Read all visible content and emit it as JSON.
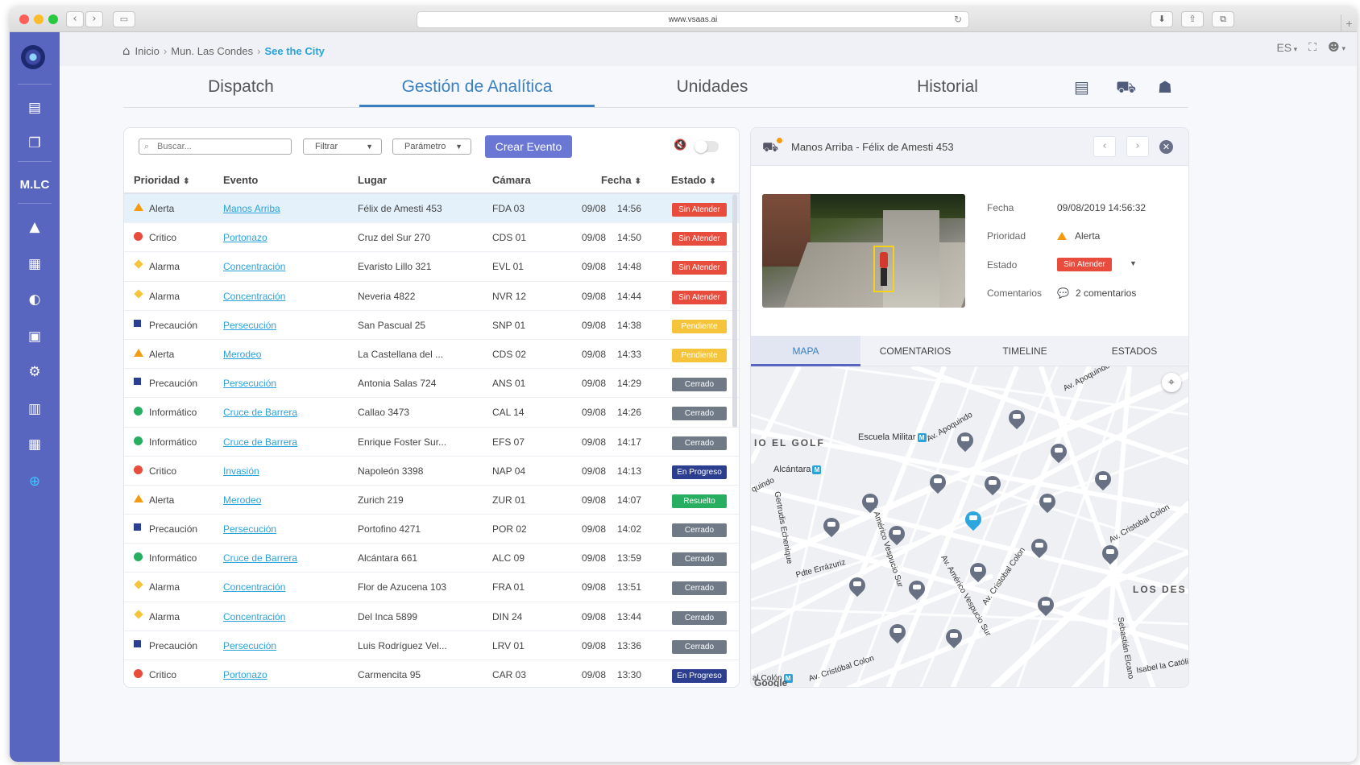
{
  "browser": {
    "url": "www.vsaas.ai"
  },
  "sidebar": {
    "org_label": "M.LC"
  },
  "breadcrumb": {
    "home": "Inicio",
    "level1": "Mun. Las Condes",
    "current": "See the City"
  },
  "topbar": {
    "language": "ES"
  },
  "tabs": [
    {
      "label": "Dispatch"
    },
    {
      "label": "Gestión de Analítica"
    },
    {
      "label": "Unidades"
    },
    {
      "label": "Historial"
    }
  ],
  "toolbar": {
    "search_placeholder": "Buscar...",
    "filter_label": "Filtrar",
    "param_label": "Parámetro",
    "create_label": "Crear Evento"
  },
  "table": {
    "headers": {
      "prioridad": "Prioridad",
      "evento": "Evento",
      "lugar": "Lugar",
      "camara": "Cámara",
      "fecha": "Fecha",
      "estado": "Estado"
    },
    "rows": [
      {
        "prioridad": "Alerta",
        "icon": "triangle",
        "color": "#f39c12",
        "evento": "Manos Arriba",
        "lugar": "Félix de Amesti 453",
        "camara": "FDA 03",
        "fecha": "09/08",
        "hora": "14:56",
        "estado": "Sin Atender",
        "estado_color": "#e74c3c"
      },
      {
        "prioridad": "Critico",
        "icon": "dot",
        "color": "#e74c3c",
        "evento": "Portonazo",
        "lugar": "Cruz del Sur 270",
        "camara": "CDS 01",
        "fecha": "09/08",
        "hora": "14:50",
        "estado": "Sin Atender",
        "estado_color": "#e74c3c"
      },
      {
        "prioridad": "Alarma",
        "icon": "diamond",
        "color": "#f6c43a",
        "evento": "Concentración",
        "lugar": "Evaristo Lillo 321",
        "camara": "EVL 01",
        "fecha": "09/08",
        "hora": "14:48",
        "estado": "Sin Atender",
        "estado_color": "#e74c3c"
      },
      {
        "prioridad": "Alarma",
        "icon": "diamond",
        "color": "#f6c43a",
        "evento": "Concentración",
        "lugar": "Neveria 4822",
        "camara": "NVR 12",
        "fecha": "09/08",
        "hora": "14:44",
        "estado": "Sin Atender",
        "estado_color": "#e74c3c"
      },
      {
        "prioridad": "Precaución",
        "icon": "square",
        "color": "#2c3e8f",
        "evento": "Persecución",
        "lugar": "San Pascual 25",
        "camara": "SNP 01",
        "fecha": "09/08",
        "hora": "14:38",
        "estado": "Pendiente",
        "estado_color": "#f6c43a"
      },
      {
        "prioridad": "Alerta",
        "icon": "triangle",
        "color": "#f39c12",
        "evento": "Merodeo",
        "lugar": "La Castellana del ...",
        "camara": "CDS 02",
        "fecha": "09/08",
        "hora": "14:33",
        "estado": "Pendiente",
        "estado_color": "#f6c43a"
      },
      {
        "prioridad": "Precaución",
        "icon": "square",
        "color": "#2c3e8f",
        "evento": "Persecución",
        "lugar": "Antonia Salas 724",
        "camara": "ANS 01",
        "fecha": "09/08",
        "hora": "14:29",
        "estado": "Cerrado",
        "estado_color": "#6f7a86"
      },
      {
        "prioridad": "Informático",
        "icon": "dot",
        "color": "#27ae60",
        "evento": "Cruce de Barrera",
        "lugar": "Callao 3473",
        "camara": "CAL 14",
        "fecha": "09/08",
        "hora": "14:26",
        "estado": "Cerrado",
        "estado_color": "#6f7a86"
      },
      {
        "prioridad": "Informático",
        "icon": "dot",
        "color": "#27ae60",
        "evento": "Cruce de Barrera",
        "lugar": "Enrique Foster Sur...",
        "camara": "EFS 07",
        "fecha": "09/08",
        "hora": "14:17",
        "estado": "Cerrado",
        "estado_color": "#6f7a86"
      },
      {
        "prioridad": "Critico",
        "icon": "dot",
        "color": "#e74c3c",
        "evento": "Invasión",
        "lugar": "Napoleón 3398",
        "camara": "NAP 04",
        "fecha": "09/08",
        "hora": "14:13",
        "estado": "En Progreso",
        "estado_color": "#2c3e8f"
      },
      {
        "prioridad": "Alerta",
        "icon": "triangle",
        "color": "#f39c12",
        "evento": "Merodeo",
        "lugar": "Zurich 219",
        "camara": "ZUR 01",
        "fecha": "09/08",
        "hora": "14:07",
        "estado": "Resuelto",
        "estado_color": "#27ae60"
      },
      {
        "prioridad": "Precaución",
        "icon": "square",
        "color": "#2c3e8f",
        "evento": "Persecución",
        "lugar": "Portofino 4271",
        "camara": "POR 02",
        "fecha": "09/08",
        "hora": "14:02",
        "estado": "Cerrado",
        "estado_color": "#6f7a86"
      },
      {
        "prioridad": "Informático",
        "icon": "dot",
        "color": "#27ae60",
        "evento": "Cruce de Barrera",
        "lugar": "Alcántara 661",
        "camara": "ALC 09",
        "fecha": "09/08",
        "hora": "13:59",
        "estado": "Cerrado",
        "estado_color": "#6f7a86"
      },
      {
        "prioridad": "Alarma",
        "icon": "diamond",
        "color": "#f6c43a",
        "evento": "Concentración",
        "lugar": "Flor de Azucena 103",
        "camara": "FRA 01",
        "fecha": "09/08",
        "hora": "13:51",
        "estado": "Cerrado",
        "estado_color": "#6f7a86"
      },
      {
        "prioridad": "Alarma",
        "icon": "diamond",
        "color": "#f6c43a",
        "evento": "Concentración",
        "lugar": "Del Inca 5899",
        "camara": "DIN 24",
        "fecha": "09/08",
        "hora": "13:44",
        "estado": "Cerrado",
        "estado_color": "#6f7a86"
      },
      {
        "prioridad": "Precaución",
        "icon": "square",
        "color": "#2c3e8f",
        "evento": "Persecución",
        "lugar": "Luis Rodríguez Vel...",
        "camara": "LRV 01",
        "fecha": "09/08",
        "hora": "13:36",
        "estado": "Cerrado",
        "estado_color": "#6f7a86"
      },
      {
        "prioridad": "Critico",
        "icon": "dot",
        "color": "#e74c3c",
        "evento": "Portonazo",
        "lugar": "Carmencita 95",
        "camara": "CAR 03",
        "fecha": "09/08",
        "hora": "13:30",
        "estado": "En Progreso",
        "estado_color": "#2c3e8f"
      }
    ]
  },
  "detail": {
    "title": "Manos Arriba - Félix de Amesti 453",
    "fecha_label": "Fecha",
    "fecha_value": "09/08/2019  14:56:32",
    "prioridad_label": "Prioridad",
    "prioridad_value": "Alerta",
    "estado_label": "Estado",
    "estado_value": "Sin Atender",
    "comentarios_label": "Comentarios",
    "comentarios_value": "2 comentarios",
    "tabs": [
      "MAPA",
      "COMENTARIOS",
      "TIMELINE",
      "ESTADOS"
    ]
  },
  "map": {
    "labels": {
      "golf": "IO EL GOLF",
      "escuela": "Escuela Militar",
      "alcantara": "Alcántara",
      "apoquindo1": "Av. Apoquindo",
      "apoquindo2": "Av. Apoquindo",
      "quindo": "quindo",
      "errazuriz": "Pdte Errázuriz",
      "vespucio": "Av. Américo Vespucio Sur",
      "vespucio2": "Av. Américo Vespucio Sur",
      "colon": "Av. Cristobal Colon",
      "colon2": "Av. Cristobal Colon",
      "colon3": "Av. Cristóbal Colon",
      "losdes": "LOS DES",
      "elcano": "Sebastián Elcano",
      "isabel": "Isabel la Católica",
      "colonm": "al Colón",
      "echenique": "Gertrudis Echenique",
      "google": "Google"
    },
    "metro_tag": "M"
  }
}
